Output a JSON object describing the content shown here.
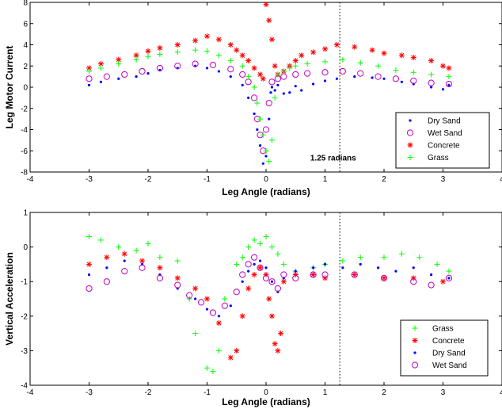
{
  "chart_data": [
    {
      "type": "scatter",
      "title": "",
      "xlabel": "Leg Angle (radians)",
      "ylabel": "Leg Motor Current",
      "xlim": [
        -4,
        4
      ],
      "ylim": [
        -8,
        8
      ],
      "xticks": [
        -4,
        -3,
        -2,
        -1,
        0,
        1,
        2,
        3,
        4
      ],
      "yticks": [
        -8,
        -6,
        -4,
        -2,
        0,
        2,
        4,
        6,
        8
      ],
      "grid": false,
      "legend_position": "bottom-right",
      "vline": {
        "x": 1.25,
        "style": "dotted"
      },
      "annotations": [
        {
          "text": "1.25 radians",
          "x": 0.75,
          "y": -6.9
        }
      ],
      "series": [
        {
          "name": "Dry Sand",
          "marker": "point",
          "color": "#0000ff",
          "x": [
            -3.0,
            -2.8,
            -2.5,
            -2.2,
            -2.0,
            -1.8,
            -1.5,
            -1.2,
            -1.0,
            -0.8,
            -0.6,
            -0.4,
            -0.3,
            -0.2,
            -0.15,
            -0.1,
            -0.05,
            0.0,
            0.05,
            0.08,
            0.1,
            0.15,
            0.2,
            0.3,
            0.4,
            0.5,
            0.6,
            0.8,
            1.0,
            1.2,
            1.5,
            1.8,
            2.0,
            2.3,
            2.5,
            2.8,
            3.0,
            3.1
          ],
          "y": [
            0.2,
            0.5,
            0.8,
            1.0,
            1.3,
            1.6,
            1.8,
            2.0,
            1.8,
            1.5,
            1.0,
            0.2,
            -1.0,
            -2.5,
            -4.0,
            -5.5,
            -7.2,
            -6.5,
            -3.0,
            -0.5,
            0.0,
            -0.3,
            0.2,
            -0.6,
            -0.5,
            0.1,
            -0.3,
            0.3,
            0.6,
            0.8,
            1.0,
            0.9,
            0.8,
            0.5,
            0.3,
            0.0,
            -0.2,
            0.2
          ]
        },
        {
          "name": "Wet Sand",
          "marker": "circle",
          "color": "#bf00bf",
          "x": [
            -3.0,
            -2.7,
            -2.4,
            -2.1,
            -1.8,
            -1.5,
            -1.2,
            -0.9,
            -0.6,
            -0.4,
            -0.3,
            -0.2,
            -0.15,
            -0.1,
            -0.05,
            0.0,
            0.05,
            0.1,
            0.2,
            0.3,
            0.5,
            0.7,
            1.0,
            1.3,
            1.6,
            1.9,
            2.2,
            2.5,
            2.8,
            3.1
          ],
          "y": [
            0.8,
            1.0,
            1.2,
            1.5,
            1.8,
            2.0,
            2.2,
            2.1,
            1.7,
            1.2,
            0.5,
            -1.0,
            -3.0,
            -4.5,
            -6.0,
            -4.0,
            -1.5,
            0.5,
            0.8,
            1.0,
            1.2,
            1.3,
            1.4,
            1.5,
            1.3,
            1.0,
            0.8,
            0.6,
            0.4,
            0.3
          ]
        },
        {
          "name": "Concrete",
          "marker": "asterisk",
          "color": "#ff0000",
          "x": [
            -3.0,
            -2.8,
            -2.5,
            -2.2,
            -2.0,
            -1.8,
            -1.5,
            -1.2,
            -1.0,
            -0.8,
            -0.6,
            -0.5,
            -0.4,
            -0.3,
            -0.2,
            -0.1,
            -0.05,
            0.0,
            0.05,
            0.1,
            0.15,
            0.2,
            0.3,
            0.4,
            0.5,
            0.6,
            0.8,
            1.0,
            1.2,
            1.5,
            1.8,
            2.0,
            2.3,
            2.5,
            2.8,
            3.0,
            3.1
          ],
          "y": [
            1.8,
            2.2,
            2.6,
            3.0,
            3.4,
            3.7,
            4.0,
            4.4,
            4.8,
            4.5,
            4.0,
            3.5,
            3.0,
            2.5,
            1.8,
            1.2,
            0.8,
            7.8,
            6.3,
            4.5,
            2.0,
            1.2,
            1.5,
            2.0,
            2.5,
            3.0,
            3.3,
            3.6,
            4.0,
            3.8,
            3.5,
            3.2,
            3.0,
            2.8,
            2.5,
            2.0,
            1.8
          ]
        },
        {
          "name": "Grass",
          "marker": "plus",
          "color": "#00ff00",
          "x": [
            -3.0,
            -2.8,
            -2.5,
            -2.2,
            -2.0,
            -1.8,
            -1.5,
            -1.2,
            -1.0,
            -0.8,
            -0.6,
            -0.4,
            -0.3,
            -0.2,
            -0.15,
            -0.1,
            -0.05,
            0.0,
            0.05,
            0.1,
            0.15,
            0.2,
            0.3,
            0.4,
            0.5,
            0.7,
            1.0,
            1.3,
            1.6,
            1.9,
            2.2,
            2.5,
            2.8,
            3.1
          ],
          "y": [
            1.5,
            1.8,
            2.2,
            2.6,
            2.9,
            3.1,
            3.3,
            3.5,
            3.4,
            3.0,
            2.5,
            2.0,
            1.0,
            0.0,
            -1.5,
            -3.0,
            -4.5,
            -6.0,
            -7.0,
            -5.0,
            -1.0,
            1.2,
            1.5,
            1.8,
            2.0,
            2.2,
            2.4,
            2.6,
            2.3,
            2.0,
            1.6,
            1.4,
            1.2,
            1.0
          ]
        }
      ]
    },
    {
      "type": "scatter",
      "title": "",
      "xlabel": "Leg Angle (radians)",
      "ylabel": "Vertical Acceleration",
      "xlim": [
        -4,
        4
      ],
      "ylim": [
        -4,
        1
      ],
      "xticks": [
        -4,
        -3,
        -2,
        -1,
        0,
        1,
        2,
        3,
        4
      ],
      "yticks": [
        -4,
        -3,
        -2,
        -1,
        0,
        1
      ],
      "grid": false,
      "legend_position": "bottom-right",
      "vline": {
        "x": 1.25,
        "style": "dotted"
      },
      "series": [
        {
          "name": "Grass",
          "marker": "plus",
          "color": "#00ff00",
          "x": [
            -3.0,
            -2.8,
            -2.5,
            -2.2,
            -2.0,
            -1.8,
            -1.5,
            -1.3,
            -1.2,
            -1.0,
            -0.9,
            -0.8,
            -0.7,
            -0.5,
            -0.4,
            -0.3,
            -0.2,
            -0.1,
            0.0,
            0.1,
            0.2,
            0.3,
            0.5,
            0.8,
            1.0,
            1.3,
            1.6,
            2.0,
            2.3,
            2.6,
            2.9,
            3.1
          ],
          "y": [
            0.3,
            0.2,
            0.0,
            -0.1,
            0.1,
            -0.3,
            -0.4,
            -1.5,
            -2.5,
            -3.5,
            -3.6,
            -3.0,
            -1.5,
            -0.5,
            -0.3,
            0.0,
            0.2,
            0.1,
            0.3,
            0.0,
            -0.2,
            -0.5,
            -0.7,
            -0.6,
            -0.5,
            -0.4,
            -0.3,
            -0.3,
            -0.2,
            -0.3,
            -0.5,
            -0.7
          ]
        },
        {
          "name": "Concrete",
          "marker": "asterisk",
          "color": "#ff0000",
          "x": [
            -3.0,
            -2.7,
            -2.4,
            -2.1,
            -1.8,
            -1.5,
            -1.2,
            -1.0,
            -0.8,
            -0.6,
            -0.5,
            -0.4,
            -0.3,
            -0.2,
            -0.1,
            0.0,
            0.05,
            0.1,
            0.15,
            0.2,
            0.25,
            0.3,
            0.5,
            0.8,
            1.0,
            1.5,
            2.0,
            2.5,
            3.0
          ],
          "y": [
            -0.5,
            -0.3,
            -0.2,
            -0.4,
            -0.6,
            -0.9,
            -1.2,
            -1.5,
            -2.2,
            -3.2,
            -3.0,
            -2.0,
            -1.2,
            -0.8,
            -0.6,
            -0.8,
            -1.5,
            -2.0,
            -2.8,
            -3.0,
            -2.5,
            -1.0,
            -0.8,
            -0.8,
            -0.9,
            -0.8,
            -0.9,
            -0.9,
            -1.0
          ]
        },
        {
          "name": "Dry Sand",
          "marker": "point",
          "color": "#0000ff",
          "x": [
            -3.0,
            -2.7,
            -2.4,
            -2.1,
            -1.8,
            -1.5,
            -1.2,
            -1.0,
            -0.8,
            -0.6,
            -0.4,
            -0.3,
            -0.2,
            -0.1,
            0.0,
            0.1,
            0.2,
            0.3,
            0.5,
            0.8,
            1.0,
            1.3,
            1.6,
            1.9,
            2.2,
            2.5,
            2.8,
            3.1
          ],
          "y": [
            -0.8,
            -0.6,
            -0.4,
            -0.5,
            -0.8,
            -1.2,
            -1.5,
            -1.8,
            -2.0,
            -1.7,
            -1.0,
            -0.7,
            -0.5,
            -0.4,
            -0.6,
            -1.0,
            -1.3,
            -0.9,
            -0.7,
            -0.6,
            -0.5,
            -0.6,
            -0.5,
            -0.6,
            -0.7,
            -0.6,
            -0.8,
            -0.9
          ]
        },
        {
          "name": "Wet Sand",
          "marker": "circle",
          "color": "#bf00bf",
          "x": [
            -3.0,
            -2.7,
            -2.4,
            -2.1,
            -1.8,
            -1.5,
            -1.3,
            -1.1,
            -0.9,
            -0.7,
            -0.5,
            -0.4,
            -0.3,
            -0.2,
            -0.1,
            0.0,
            0.1,
            0.2,
            0.3,
            0.5,
            0.8,
            1.0,
            1.5,
            2.0,
            2.5,
            2.8,
            3.1
          ],
          "y": [
            -1.2,
            -1.0,
            -0.7,
            -0.6,
            -0.9,
            -1.1,
            -1.4,
            -1.6,
            -1.9,
            -1.7,
            -1.3,
            -0.8,
            -0.5,
            -0.3,
            -0.6,
            -0.9,
            -1.0,
            -1.2,
            -0.8,
            -0.9,
            -0.8,
            -0.8,
            -0.8,
            -0.9,
            -1.0,
            -1.1,
            -0.9
          ]
        }
      ]
    }
  ]
}
